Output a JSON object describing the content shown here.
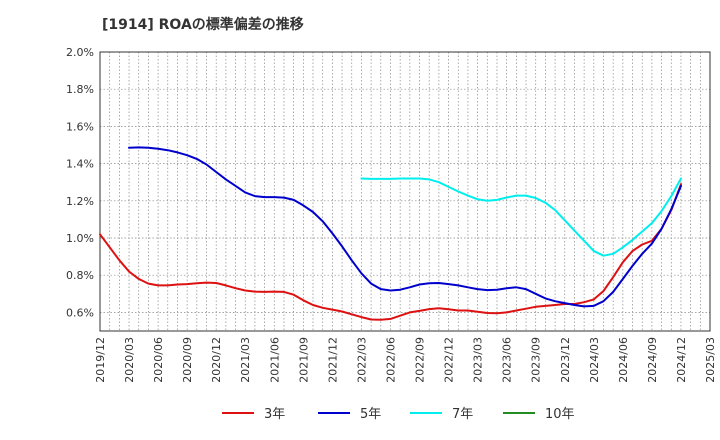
{
  "chart_data": {
    "type": "line",
    "title": "[1914]  ROAの標準偏差の推移",
    "xlabel": "",
    "ylabel": "",
    "x_ticks": [
      "2019/12",
      "2020/03",
      "2020/06",
      "2020/09",
      "2020/12",
      "2021/03",
      "2021/06",
      "2021/09",
      "2021/12",
      "2022/03",
      "2022/06",
      "2022/09",
      "2022/12",
      "2023/03",
      "2023/06",
      "2023/09",
      "2023/12",
      "2024/03",
      "2024/06",
      "2024/09",
      "2024/12",
      "2025/03"
    ],
    "y_ticks": [
      "0.6%",
      "0.8%",
      "1.0%",
      "1.2%",
      "1.4%",
      "1.6%",
      "1.8%",
      "2.0%"
    ],
    "y_tick_values": [
      0.6,
      0.8,
      1.0,
      1.2,
      1.4,
      1.6,
      1.8,
      2.0
    ],
    "ylim": [
      0.5,
      2.0
    ],
    "grid": true,
    "legend_position": "bottom",
    "series": [
      {
        "name": "3年",
        "color": "#dd1111",
        "points": [
          [
            "2019/12",
            1.02
          ],
          [
            "2020/01",
            0.95
          ],
          [
            "2020/02",
            0.88
          ],
          [
            "2020/03",
            0.82
          ],
          [
            "2020/04",
            0.78
          ],
          [
            "2020/05",
            0.755
          ],
          [
            "2020/06",
            0.745
          ],
          [
            "2020/07",
            0.745
          ],
          [
            "2020/08",
            0.75
          ],
          [
            "2020/09",
            0.752
          ],
          [
            "2020/10",
            0.757
          ],
          [
            "2020/11",
            0.76
          ],
          [
            "2020/12",
            0.758
          ],
          [
            "2021/01",
            0.745
          ],
          [
            "2021/02",
            0.73
          ],
          [
            "2021/03",
            0.718
          ],
          [
            "2021/04",
            0.712
          ],
          [
            "2021/05",
            0.71
          ],
          [
            "2021/06",
            0.712
          ],
          [
            "2021/07",
            0.71
          ],
          [
            "2021/08",
            0.695
          ],
          [
            "2021/09",
            0.665
          ],
          [
            "2021/10",
            0.64
          ],
          [
            "2021/11",
            0.625
          ],
          [
            "2021/12",
            0.615
          ],
          [
            "2022/01",
            0.605
          ],
          [
            "2022/02",
            0.59
          ],
          [
            "2022/03",
            0.575
          ],
          [
            "2022/04",
            0.562
          ],
          [
            "2022/05",
            0.56
          ],
          [
            "2022/06",
            0.565
          ],
          [
            "2022/07",
            0.582
          ],
          [
            "2022/08",
            0.6
          ],
          [
            "2022/09",
            0.608
          ],
          [
            "2022/10",
            0.618
          ],
          [
            "2022/11",
            0.622
          ],
          [
            "2022/12",
            0.617
          ],
          [
            "2023/01",
            0.61
          ],
          [
            "2023/02",
            0.61
          ],
          [
            "2023/03",
            0.603
          ],
          [
            "2023/04",
            0.597
          ],
          [
            "2023/05",
            0.595
          ],
          [
            "2023/06",
            0.6
          ],
          [
            "2023/07",
            0.61
          ],
          [
            "2023/08",
            0.62
          ],
          [
            "2023/09",
            0.63
          ],
          [
            "2023/10",
            0.635
          ],
          [
            "2023/11",
            0.64
          ],
          [
            "2023/12",
            0.645
          ],
          [
            "2024/01",
            0.645
          ],
          [
            "2024/02",
            0.655
          ],
          [
            "2024/03",
            0.67
          ],
          [
            "2024/04",
            0.715
          ],
          [
            "2024/05",
            0.79
          ],
          [
            "2024/06",
            0.87
          ],
          [
            "2024/07",
            0.93
          ],
          [
            "2024/08",
            0.965
          ],
          [
            "2024/09",
            0.985
          ],
          [
            "2024/10",
            1.05
          ],
          [
            "2024/11",
            1.15
          ],
          [
            "2024/12",
            1.29
          ]
        ]
      },
      {
        "name": "5年",
        "color": "#0000cc",
        "points": [
          [
            "2020/03",
            1.485
          ],
          [
            "2020/04",
            1.487
          ],
          [
            "2020/05",
            1.485
          ],
          [
            "2020/06",
            1.48
          ],
          [
            "2020/07",
            1.472
          ],
          [
            "2020/08",
            1.46
          ],
          [
            "2020/09",
            1.445
          ],
          [
            "2020/10",
            1.425
          ],
          [
            "2020/11",
            1.395
          ],
          [
            "2020/12",
            1.355
          ],
          [
            "2021/01",
            1.315
          ],
          [
            "2021/02",
            1.28
          ],
          [
            "2021/03",
            1.245
          ],
          [
            "2021/04",
            1.225
          ],
          [
            "2021/05",
            1.22
          ],
          [
            "2021/06",
            1.22
          ],
          [
            "2021/07",
            1.217
          ],
          [
            "2021/08",
            1.205
          ],
          [
            "2021/09",
            1.175
          ],
          [
            "2021/10",
            1.14
          ],
          [
            "2021/11",
            1.09
          ],
          [
            "2021/12",
            1.025
          ],
          [
            "2022/01",
            0.955
          ],
          [
            "2022/02",
            0.88
          ],
          [
            "2022/03",
            0.81
          ],
          [
            "2022/04",
            0.755
          ],
          [
            "2022/05",
            0.725
          ],
          [
            "2022/06",
            0.718
          ],
          [
            "2022/07",
            0.722
          ],
          [
            "2022/08",
            0.735
          ],
          [
            "2022/09",
            0.75
          ],
          [
            "2022/10",
            0.757
          ],
          [
            "2022/11",
            0.758
          ],
          [
            "2022/12",
            0.752
          ],
          [
            "2023/01",
            0.745
          ],
          [
            "2023/02",
            0.735
          ],
          [
            "2023/03",
            0.725
          ],
          [
            "2023/04",
            0.72
          ],
          [
            "2023/05",
            0.722
          ],
          [
            "2023/06",
            0.73
          ],
          [
            "2023/07",
            0.735
          ],
          [
            "2023/08",
            0.725
          ],
          [
            "2023/09",
            0.7
          ],
          [
            "2023/10",
            0.675
          ],
          [
            "2023/11",
            0.66
          ],
          [
            "2023/12",
            0.65
          ],
          [
            "2024/01",
            0.64
          ],
          [
            "2024/02",
            0.632
          ],
          [
            "2024/03",
            0.635
          ],
          [
            "2024/04",
            0.66
          ],
          [
            "2024/05",
            0.71
          ],
          [
            "2024/06",
            0.78
          ],
          [
            "2024/07",
            0.85
          ],
          [
            "2024/08",
            0.915
          ],
          [
            "2024/09",
            0.97
          ],
          [
            "2024/10",
            1.05
          ],
          [
            "2024/11",
            1.155
          ],
          [
            "2024/12",
            1.28
          ]
        ]
      },
      {
        "name": "7年",
        "color": "#00eeee",
        "points": [
          [
            "2022/03",
            1.32
          ],
          [
            "2022/04",
            1.318
          ],
          [
            "2022/05",
            1.318
          ],
          [
            "2022/06",
            1.318
          ],
          [
            "2022/07",
            1.32
          ],
          [
            "2022/08",
            1.32
          ],
          [
            "2022/09",
            1.32
          ],
          [
            "2022/10",
            1.315
          ],
          [
            "2022/11",
            1.3
          ],
          [
            "2022/12",
            1.275
          ],
          [
            "2023/01",
            1.25
          ],
          [
            "2023/02",
            1.228
          ],
          [
            "2023/03",
            1.208
          ],
          [
            "2023/04",
            1.2
          ],
          [
            "2023/05",
            1.205
          ],
          [
            "2023/06",
            1.218
          ],
          [
            "2023/07",
            1.228
          ],
          [
            "2023/08",
            1.228
          ],
          [
            "2023/09",
            1.215
          ],
          [
            "2023/10",
            1.19
          ],
          [
            "2023/11",
            1.15
          ],
          [
            "2023/12",
            1.095
          ],
          [
            "2024/01",
            1.04
          ],
          [
            "2024/02",
            0.985
          ],
          [
            "2024/03",
            0.93
          ],
          [
            "2024/04",
            0.905
          ],
          [
            "2024/05",
            0.915
          ],
          [
            "2024/06",
            0.95
          ],
          [
            "2024/07",
            0.99
          ],
          [
            "2024/08",
            1.035
          ],
          [
            "2024/09",
            1.08
          ],
          [
            "2024/10",
            1.145
          ],
          [
            "2024/11",
            1.225
          ],
          [
            "2024/12",
            1.32
          ]
        ]
      },
      {
        "name": "10年",
        "color": "#228b22",
        "points": []
      }
    ]
  }
}
